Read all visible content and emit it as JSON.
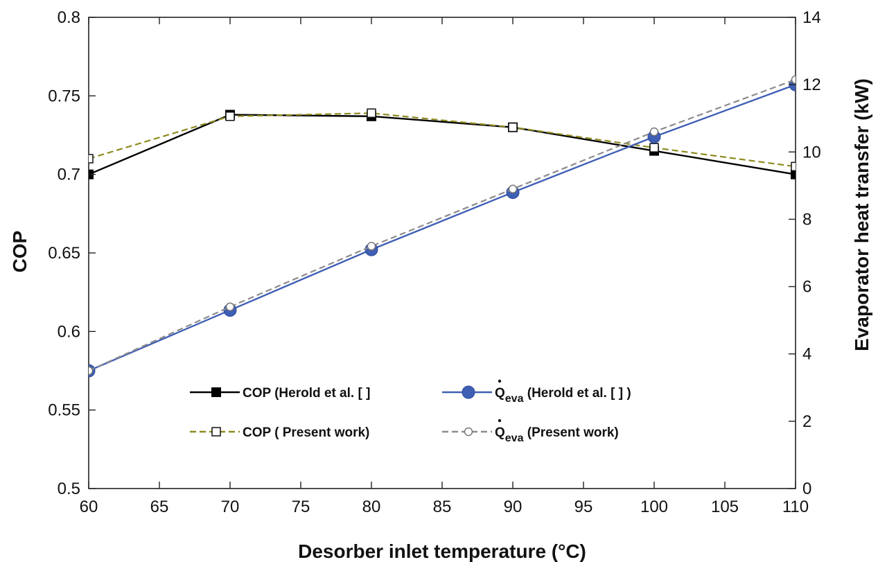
{
  "chart_data": {
    "type": "line",
    "xlabel": "Desorber inlet temperature (°C)",
    "ylabel": "COP",
    "y2label": "Evaporator heat transfer (kW)",
    "xlim": [
      60,
      110
    ],
    "ylim": [
      0.5,
      0.8
    ],
    "y2lim": [
      0,
      14
    ],
    "x_ticks": [
      60,
      65,
      70,
      75,
      80,
      85,
      90,
      95,
      100,
      105,
      110
    ],
    "y_ticks": [
      "0.5",
      "0.55",
      "0.6",
      "0.65",
      "0.7",
      "0.75",
      "0.8"
    ],
    "y2_ticks": [
      0,
      2,
      4,
      6,
      8,
      10,
      12,
      14
    ],
    "grid": false,
    "legend_position": "bottom-center",
    "series": [
      {
        "name": "COP (Herold et al. [   ]",
        "axis": "left",
        "color": "#000000",
        "line": "solid",
        "marker": "filled-square",
        "x": [
          60,
          70,
          80,
          90,
          100,
          110
        ],
        "y": [
          0.7,
          0.738,
          0.737,
          0.73,
          0.715,
          0.7
        ]
      },
      {
        "name": "COP ( Present work)",
        "axis": "left",
        "color": "#8f8a1f",
        "line": "dashed",
        "marker": "open-square",
        "x": [
          60,
          70,
          80,
          90,
          100,
          110
        ],
        "y": [
          0.71,
          0.737,
          0.739,
          0.73,
          0.717,
          0.705
        ]
      },
      {
        "name_prefix": "Q",
        "name_sub": "eva",
        "name_suffix": " (Herold et al. [   ] )",
        "axis": "right",
        "color": "#3f5fb5",
        "line": "solid",
        "marker": "filled-circle",
        "x": [
          60,
          70,
          80,
          90,
          100,
          110
        ],
        "y": [
          3.5,
          5.3,
          7.1,
          8.8,
          10.45,
          12.0
        ]
      },
      {
        "name_prefix": "Q",
        "name_sub": "eva",
        "name_suffix": " (Present work)",
        "axis": "right",
        "color": "#8c8c8c",
        "line": "dashed",
        "marker": "open-circle",
        "x": [
          60,
          70,
          80,
          90,
          100,
          110
        ],
        "y": [
          3.5,
          5.4,
          7.2,
          8.9,
          10.6,
          12.15
        ]
      }
    ]
  }
}
